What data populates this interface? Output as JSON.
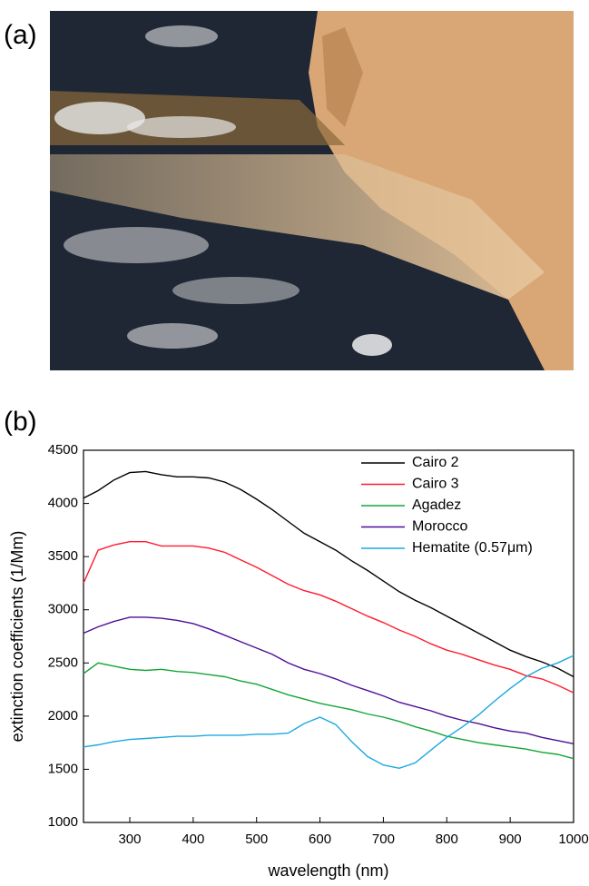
{
  "figure_labels": [
    "(a)",
    "(b)"
  ],
  "chart_data": {
    "type": "line",
    "xlabel": "wavelength (nm)",
    "ylabel": "extinction coefficients (1/Mm)",
    "xlim": [
      227,
      1000
    ],
    "ylim": [
      1000,
      4500
    ],
    "xticks": [
      300,
      400,
      500,
      600,
      700,
      800,
      900,
      1000
    ],
    "yticks": [
      1000,
      1500,
      2000,
      2500,
      3000,
      3500,
      4000,
      4500
    ],
    "legend": "upper right",
    "x": [
      227,
      250,
      275,
      300,
      325,
      350,
      375,
      400,
      425,
      450,
      475,
      500,
      525,
      550,
      575,
      600,
      625,
      650,
      675,
      700,
      725,
      750,
      775,
      800,
      825,
      850,
      875,
      900,
      925,
      950,
      975,
      1000
    ],
    "series": [
      {
        "name": "Cairo 2",
        "color": "#000000",
        "values": [
          4050,
          4120,
          4220,
          4290,
          4300,
          4270,
          4250,
          4250,
          4240,
          4200,
          4130,
          4040,
          3940,
          3830,
          3720,
          3640,
          3560,
          3460,
          3370,
          3270,
          3170,
          3090,
          3020,
          2940,
          2860,
          2780,
          2700,
          2620,
          2560,
          2510,
          2450,
          2370
        ]
      },
      {
        "name": "Cairo 3",
        "color": "#ff1a2e",
        "values": [
          3250,
          3560,
          3610,
          3640,
          3640,
          3600,
          3600,
          3600,
          3580,
          3540,
          3470,
          3400,
          3320,
          3240,
          3180,
          3140,
          3080,
          3010,
          2940,
          2880,
          2810,
          2750,
          2680,
          2620,
          2580,
          2530,
          2480,
          2440,
          2380,
          2350,
          2290,
          2220
        ]
      },
      {
        "name": "Agadez",
        "color": "#13a538",
        "values": [
          2400,
          2500,
          2470,
          2440,
          2430,
          2440,
          2420,
          2410,
          2390,
          2370,
          2330,
          2300,
          2250,
          2200,
          2160,
          2120,
          2090,
          2060,
          2020,
          1990,
          1950,
          1900,
          1860,
          1810,
          1780,
          1750,
          1730,
          1710,
          1690,
          1660,
          1640,
          1600
        ]
      },
      {
        "name": "Morocco",
        "color": "#4b0f96",
        "values": [
          2780,
          2840,
          2890,
          2930,
          2930,
          2920,
          2900,
          2870,
          2820,
          2760,
          2700,
          2640,
          2580,
          2500,
          2440,
          2400,
          2350,
          2290,
          2240,
          2190,
          2130,
          2090,
          2050,
          2000,
          1960,
          1930,
          1890,
          1860,
          1840,
          1800,
          1770,
          1740
        ]
      },
      {
        "name": "Hematite (0.57μm)",
        "color": "#1ba8e0",
        "values": [
          1710,
          1730,
          1760,
          1780,
          1790,
          1800,
          1810,
          1810,
          1820,
          1820,
          1820,
          1830,
          1830,
          1840,
          1930,
          1990,
          1920,
          1760,
          1620,
          1540,
          1510,
          1560,
          1680,
          1800,
          1900,
          2010,
          2140,
          2260,
          2370,
          2450,
          2500,
          2570
        ]
      }
    ]
  }
}
